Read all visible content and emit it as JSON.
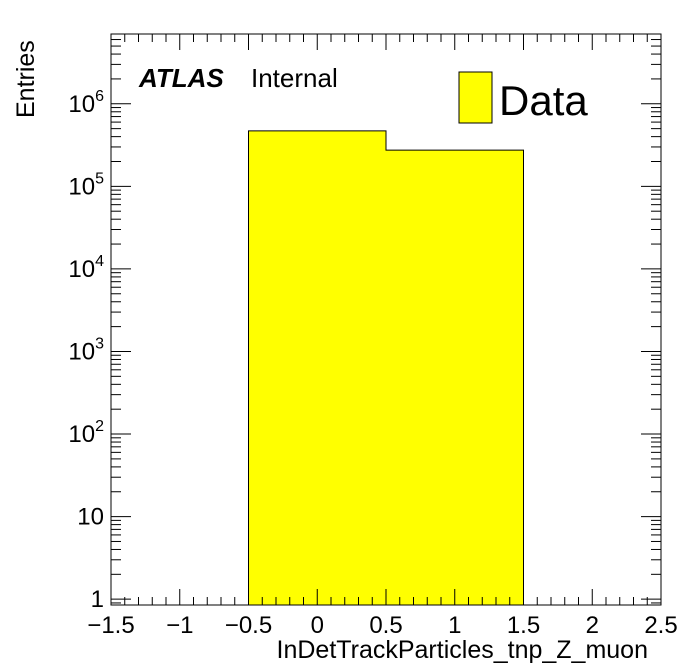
{
  "chart_data": {
    "type": "bar",
    "histogram": true,
    "bins": [
      {
        "low": -0.5,
        "high": 0.5,
        "value": 470000
      },
      {
        "low": 0.5,
        "high": 1.5,
        "value": 275000
      }
    ],
    "xlabel": "InDetTrackParticles_tnp_Z_muon",
    "ylabel": "Entries",
    "xlim": [
      -1.5,
      2.5
    ],
    "ylim": [
      0.85,
      7000000
    ],
    "yscale": "log",
    "x_ticks": [
      {
        "value": -1.5,
        "label": "−1.5"
      },
      {
        "value": -1,
        "label": "−1"
      },
      {
        "value": -0.5,
        "label": "−0.5"
      },
      {
        "value": 0,
        "label": "0"
      },
      {
        "value": 0.5,
        "label": "0.5"
      },
      {
        "value": 1,
        "label": "1"
      },
      {
        "value": 1.5,
        "label": "1.5"
      },
      {
        "value": 2,
        "label": "2"
      },
      {
        "value": 2.5,
        "label": "2.5"
      }
    ],
    "y_ticks": [
      {
        "value": 1,
        "base": "1",
        "exp": ""
      },
      {
        "value": 10,
        "base": "10",
        "exp": ""
      },
      {
        "value": 100,
        "base": "10",
        "exp": "2"
      },
      {
        "value": 1000,
        "base": "10",
        "exp": "3"
      },
      {
        "value": 10000,
        "base": "10",
        "exp": "4"
      },
      {
        "value": 100000,
        "base": "10",
        "exp": "5"
      },
      {
        "value": 1000000,
        "base": "10",
        "exp": "6"
      }
    ],
    "legend": {
      "entries": [
        {
          "name": "Data",
          "color": "#ffff00"
        }
      ],
      "position": "top-right"
    },
    "annotation": {
      "bold": "ATLAS",
      "normal": "Internal"
    },
    "fill_color": "#ffff00",
    "line_color": "#000000",
    "grid": false
  }
}
